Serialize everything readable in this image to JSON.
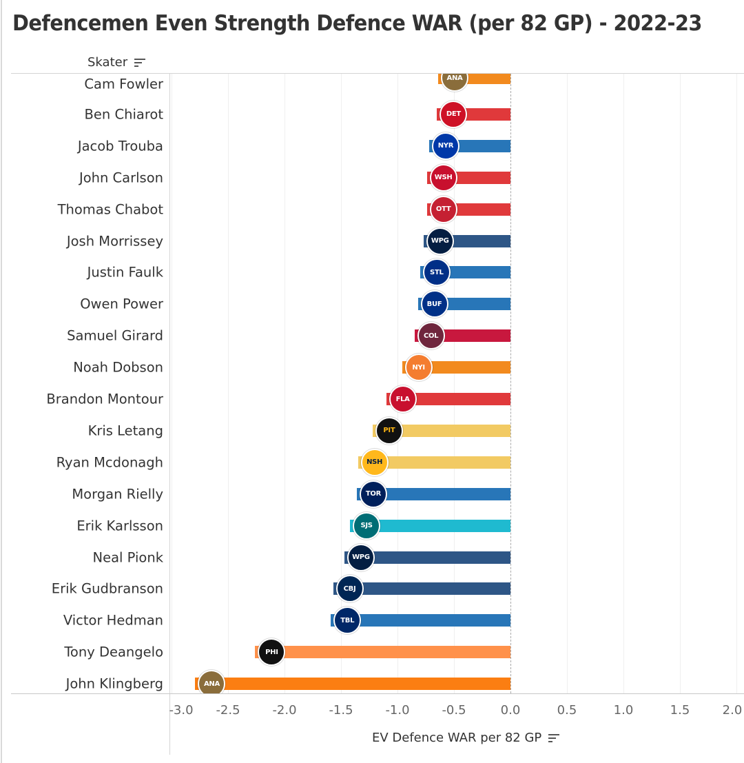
{
  "title": "Defencemen Even Strength Defence WAR (per 82 GP) - 2022-23",
  "column_header": "Skater",
  "column_sort_icon": "sort-descending-icon",
  "axis_sort_icon": "sort-descending-icon",
  "chart_data": {
    "type": "bar",
    "orientation": "horizontal",
    "title": "Defencemen Even Strength Defence WAR (per 82 GP) - 2022-23",
    "xlabel": "EV Defence WAR per 82 GP",
    "ylabel": "Skater",
    "xlim": [
      -3.0,
      2.0
    ],
    "xticks": [
      "-3.0",
      "-2.5",
      "-2.0",
      "-1.5",
      "-1.0",
      "-0.5",
      "0.0",
      "0.5",
      "1.0",
      "1.5",
      "2.0"
    ],
    "grid": true,
    "legend": "none",
    "categories": [
      "Cam Fowler",
      "Ben Chiarot",
      "Jacob Trouba",
      "John Carlson",
      "Thomas Chabot",
      "Josh Morrissey",
      "Justin Faulk",
      "Owen Power",
      "Samuel Girard",
      "Noah Dobson",
      "Brandon Montour",
      "Kris Letang",
      "Ryan Mcdonagh",
      "Morgan Rielly",
      "Erik Karlsson",
      "Neal Pionk",
      "Erik Gudbranson",
      "Victor Hedman",
      "Tony Deangelo",
      "John Klingberg"
    ],
    "values": [
      -0.64,
      -0.65,
      -0.72,
      -0.74,
      -0.74,
      -0.77,
      -0.8,
      -0.82,
      -0.85,
      -0.96,
      -1.1,
      -1.22,
      -1.35,
      -1.36,
      -1.42,
      -1.47,
      -1.57,
      -1.59,
      -2.26,
      -2.79
    ],
    "teams": [
      "ANA",
      "DET",
      "NYR",
      "WSH",
      "OTT",
      "WPG",
      "STL",
      "BUF",
      "COL",
      "NYI",
      "FLA",
      "PIT",
      "NSH",
      "TOR",
      "SJS",
      "WPG",
      "CBJ",
      "TBL",
      "PHI",
      "ANA"
    ],
    "team_logos": [
      "anaheim-ducks-logo",
      "detroit-red-wings-logo",
      "new-york-rangers-logo",
      "washington-capitals-logo",
      "ottawa-senators-logo",
      "winnipeg-jets-logo",
      "st-louis-blues-logo",
      "buffalo-sabres-logo",
      "colorado-avalanche-logo",
      "new-york-islanders-logo",
      "florida-panthers-logo",
      "pittsburgh-penguins-logo",
      "nashville-predators-logo",
      "toronto-maple-leafs-logo",
      "san-jose-sharks-logo",
      "winnipeg-jets-logo",
      "columbus-blue-jackets-logo",
      "tampa-bay-lightning-logo",
      "philadelphia-flyers-logo",
      "anaheim-ducks-logo"
    ],
    "bar_colors": [
      "#F28A1E",
      "#E0393B",
      "#2876B8",
      "#E0393B",
      "#E0393B",
      "#2E5686",
      "#2876B8",
      "#2876B8",
      "#C8183E",
      "#F28A1E",
      "#E0393B",
      "#F2CA63",
      "#F2CA63",
      "#2876B8",
      "#1FBAD0",
      "#2E5686",
      "#2E5686",
      "#2876B8",
      "#FF914A",
      "#FB7E12"
    ],
    "logo_colors": [
      "#8A6D3B",
      "#CE1126",
      "#0038A8",
      "#C8102E",
      "#C52032",
      "#041E42",
      "#002F87",
      "#003087",
      "#6F263D",
      "#F47D30",
      "#C8102E",
      "#111111",
      "#FFB81C",
      "#00205B",
      "#006D75",
      "#041E42",
      "#002654",
      "#002868",
      "#111111",
      "#8A6D3B"
    ]
  }
}
